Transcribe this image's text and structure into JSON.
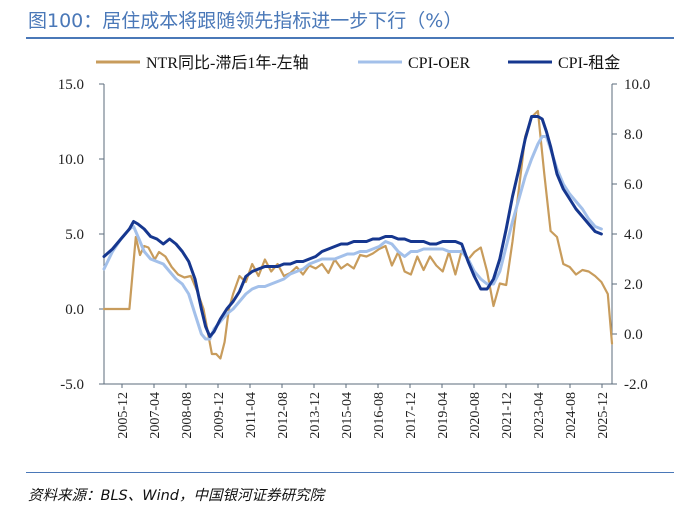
{
  "header": {
    "title": "图100：居住成本将跟随领先指标进一步下行（%）"
  },
  "source": "资料来源：BLS、Wind，中国银河证券研究院",
  "chart_data": {
    "type": "line",
    "legend_position": "top",
    "grid": false,
    "y_left": {
      "ylim": [
        -5,
        15
      ],
      "ticks": [
        "-5.0",
        "0.0",
        "5.0",
        "10.0",
        "15.0"
      ]
    },
    "y_right": {
      "ylim": [
        -2,
        10
      ],
      "ticks": [
        "-2.0",
        "0.0",
        "2.0",
        "4.0",
        "6.0",
        "8.0",
        "10.0"
      ]
    },
    "x_ticks": [
      "2005-12",
      "2007-04",
      "2008-08",
      "2009-12",
      "2011-04",
      "2012-08",
      "2013-12",
      "2015-04",
      "2016-08",
      "2017-12",
      "2019-04",
      "2020-08",
      "2021-12",
      "2023-04",
      "2024-08",
      "2025-12"
    ],
    "series": [
      {
        "name": "NTR同比-滞后1年-左轴",
        "axis": "left",
        "color": "#c89c5c",
        "x": [
          2005.917,
          2006.5,
          2006.917,
          2007.167,
          2007.333,
          2007.5,
          2007.667,
          2007.917,
          2008.083,
          2008.333,
          2008.583,
          2008.833,
          2009.083,
          2009.333,
          2009.583,
          2009.833,
          2010.0,
          2010.167,
          2010.333,
          2010.5,
          2010.667,
          2010.833,
          2011.0,
          2011.25,
          2011.5,
          2011.75,
          2012.0,
          2012.25,
          2012.5,
          2012.75,
          2013.0,
          2013.25,
          2013.5,
          2013.75,
          2014.0,
          2014.25,
          2014.5,
          2014.75,
          2015.0,
          2015.25,
          2015.5,
          2015.75,
          2016.0,
          2016.25,
          2016.5,
          2016.75,
          2017.0,
          2017.25,
          2017.5,
          2017.75,
          2018.0,
          2018.25,
          2018.5,
          2018.75,
          2019.0,
          2019.25,
          2019.5,
          2019.75,
          2020.0,
          2020.25,
          2020.5,
          2020.75,
          2021.0,
          2021.25,
          2021.5,
          2021.75,
          2022.0,
          2022.25,
          2022.5,
          2022.75,
          2023.0,
          2023.25,
          2023.5,
          2023.75,
          2024.0,
          2024.25,
          2024.5,
          2024.75,
          2025.0,
          2025.25,
          2025.5,
          2025.75,
          2025.917
        ],
        "values": [
          0.0,
          0.0,
          0.0,
          4.8,
          3.6,
          4.2,
          4.1,
          3.3,
          3.8,
          3.5,
          2.8,
          2.3,
          2.1,
          2.2,
          1.2,
          0.0,
          -1.5,
          -3.0,
          -3.0,
          -3.3,
          -2.2,
          0.0,
          1.0,
          2.2,
          1.8,
          3.0,
          2.2,
          3.3,
          2.5,
          3.0,
          2.2,
          2.4,
          2.8,
          2.3,
          2.9,
          2.7,
          3.0,
          2.4,
          3.3,
          2.7,
          3.0,
          2.7,
          3.6,
          3.5,
          3.7,
          4.0,
          4.2,
          2.9,
          3.8,
          2.5,
          2.3,
          3.5,
          2.6,
          3.5,
          2.9,
          2.5,
          3.8,
          2.3,
          3.9,
          3.3,
          3.8,
          4.1,
          2.5,
          0.2,
          1.7,
          1.6,
          4.5,
          8.0,
          11.5,
          12.8,
          13.2,
          9.0,
          5.2,
          4.8,
          3.0,
          2.8,
          2.3,
          2.6,
          2.5,
          2.2,
          1.8,
          1.0,
          -2.3
        ]
      },
      {
        "name": "CPI-OER",
        "axis": "right",
        "color": "#a3c0ea",
        "x": [
          2005.917,
          2006.25,
          2006.583,
          2006.917,
          2007.083,
          2007.25,
          2007.5,
          2007.75,
          2008.0,
          2008.25,
          2008.5,
          2008.75,
          2009.0,
          2009.25,
          2009.5,
          2009.75,
          2009.917,
          2010.083,
          2010.25,
          2010.5,
          2010.75,
          2011.0,
          2011.25,
          2011.5,
          2011.75,
          2012.0,
          2012.25,
          2012.5,
          2012.75,
          2013.0,
          2013.25,
          2013.5,
          2013.75,
          2014.0,
          2014.25,
          2014.5,
          2014.75,
          2015.0,
          2015.25,
          2015.5,
          2015.75,
          2016.0,
          2016.25,
          2016.5,
          2016.75,
          2017.0,
          2017.25,
          2017.5,
          2017.75,
          2018.0,
          2018.25,
          2018.5,
          2018.75,
          2019.0,
          2019.25,
          2019.5,
          2019.75,
          2020.0,
          2020.25,
          2020.5,
          2020.75,
          2021.0,
          2021.25,
          2021.5,
          2021.75,
          2022.0,
          2022.25,
          2022.5,
          2022.75,
          2023.0,
          2023.167,
          2023.333,
          2023.5,
          2023.75,
          2024.0,
          2024.25,
          2024.5,
          2024.75,
          2025.0,
          2025.25,
          2025.5
        ],
        "values": [
          2.6,
          3.3,
          3.8,
          4.2,
          4.3,
          3.9,
          3.3,
          3.0,
          2.9,
          2.8,
          2.5,
          2.2,
          2.0,
          1.6,
          0.8,
          0.0,
          -0.2,
          -0.2,
          0.2,
          0.5,
          0.8,
          1.0,
          1.3,
          1.6,
          1.8,
          1.9,
          1.9,
          2.0,
          2.1,
          2.2,
          2.4,
          2.5,
          2.6,
          2.8,
          2.9,
          3.0,
          3.0,
          3.0,
          3.1,
          3.2,
          3.2,
          3.3,
          3.3,
          3.4,
          3.5,
          3.7,
          3.6,
          3.3,
          3.1,
          3.3,
          3.3,
          3.4,
          3.4,
          3.4,
          3.4,
          3.3,
          3.3,
          3.3,
          3.0,
          2.5,
          2.2,
          2.0,
          2.0,
          2.5,
          3.5,
          4.5,
          5.4,
          6.3,
          7.0,
          7.6,
          7.9,
          7.9,
          7.4,
          6.6,
          6.0,
          5.6,
          5.3,
          5.0,
          4.6,
          4.3,
          4.2
        ]
      },
      {
        "name": "CPI-租金",
        "axis": "right",
        "color": "#16378f",
        "x": [
          2005.917,
          2006.25,
          2006.583,
          2006.917,
          2007.083,
          2007.25,
          2007.5,
          2007.75,
          2008.0,
          2008.25,
          2008.5,
          2008.75,
          2009.0,
          2009.25,
          2009.5,
          2009.75,
          2009.917,
          2010.083,
          2010.25,
          2010.5,
          2010.75,
          2011.0,
          2011.25,
          2011.5,
          2011.75,
          2012.0,
          2012.25,
          2012.5,
          2012.75,
          2013.0,
          2013.25,
          2013.5,
          2013.75,
          2014.0,
          2014.25,
          2014.5,
          2014.75,
          2015.0,
          2015.25,
          2015.5,
          2015.75,
          2016.0,
          2016.25,
          2016.5,
          2016.75,
          2017.0,
          2017.25,
          2017.5,
          2017.75,
          2018.0,
          2018.25,
          2018.5,
          2018.75,
          2019.0,
          2019.25,
          2019.5,
          2019.75,
          2020.0,
          2020.25,
          2020.5,
          2020.75,
          2021.0,
          2021.25,
          2021.5,
          2021.75,
          2022.0,
          2022.25,
          2022.5,
          2022.75,
          2023.0,
          2023.167,
          2023.333,
          2023.5,
          2023.75,
          2024.0,
          2024.25,
          2024.5,
          2024.75,
          2025.0,
          2025.25,
          2025.5
        ],
        "values": [
          3.1,
          3.4,
          3.8,
          4.2,
          4.5,
          4.4,
          4.2,
          3.9,
          3.8,
          3.6,
          3.8,
          3.6,
          3.3,
          2.9,
          2.2,
          1.0,
          0.3,
          -0.1,
          0.1,
          0.6,
          1.0,
          1.3,
          1.7,
          2.3,
          2.5,
          2.6,
          2.7,
          2.7,
          2.7,
          2.8,
          2.8,
          2.9,
          2.9,
          3.0,
          3.1,
          3.3,
          3.4,
          3.5,
          3.6,
          3.6,
          3.7,
          3.7,
          3.7,
          3.8,
          3.8,
          3.9,
          3.9,
          3.8,
          3.8,
          3.7,
          3.7,
          3.7,
          3.6,
          3.6,
          3.7,
          3.7,
          3.7,
          3.6,
          2.9,
          2.3,
          1.8,
          1.8,
          2.2,
          3.0,
          4.2,
          5.5,
          6.6,
          7.8,
          8.7,
          8.7,
          8.6,
          8.1,
          7.5,
          6.4,
          5.8,
          5.4,
          5.0,
          4.7,
          4.4,
          4.1,
          4.0
        ]
      }
    ]
  }
}
